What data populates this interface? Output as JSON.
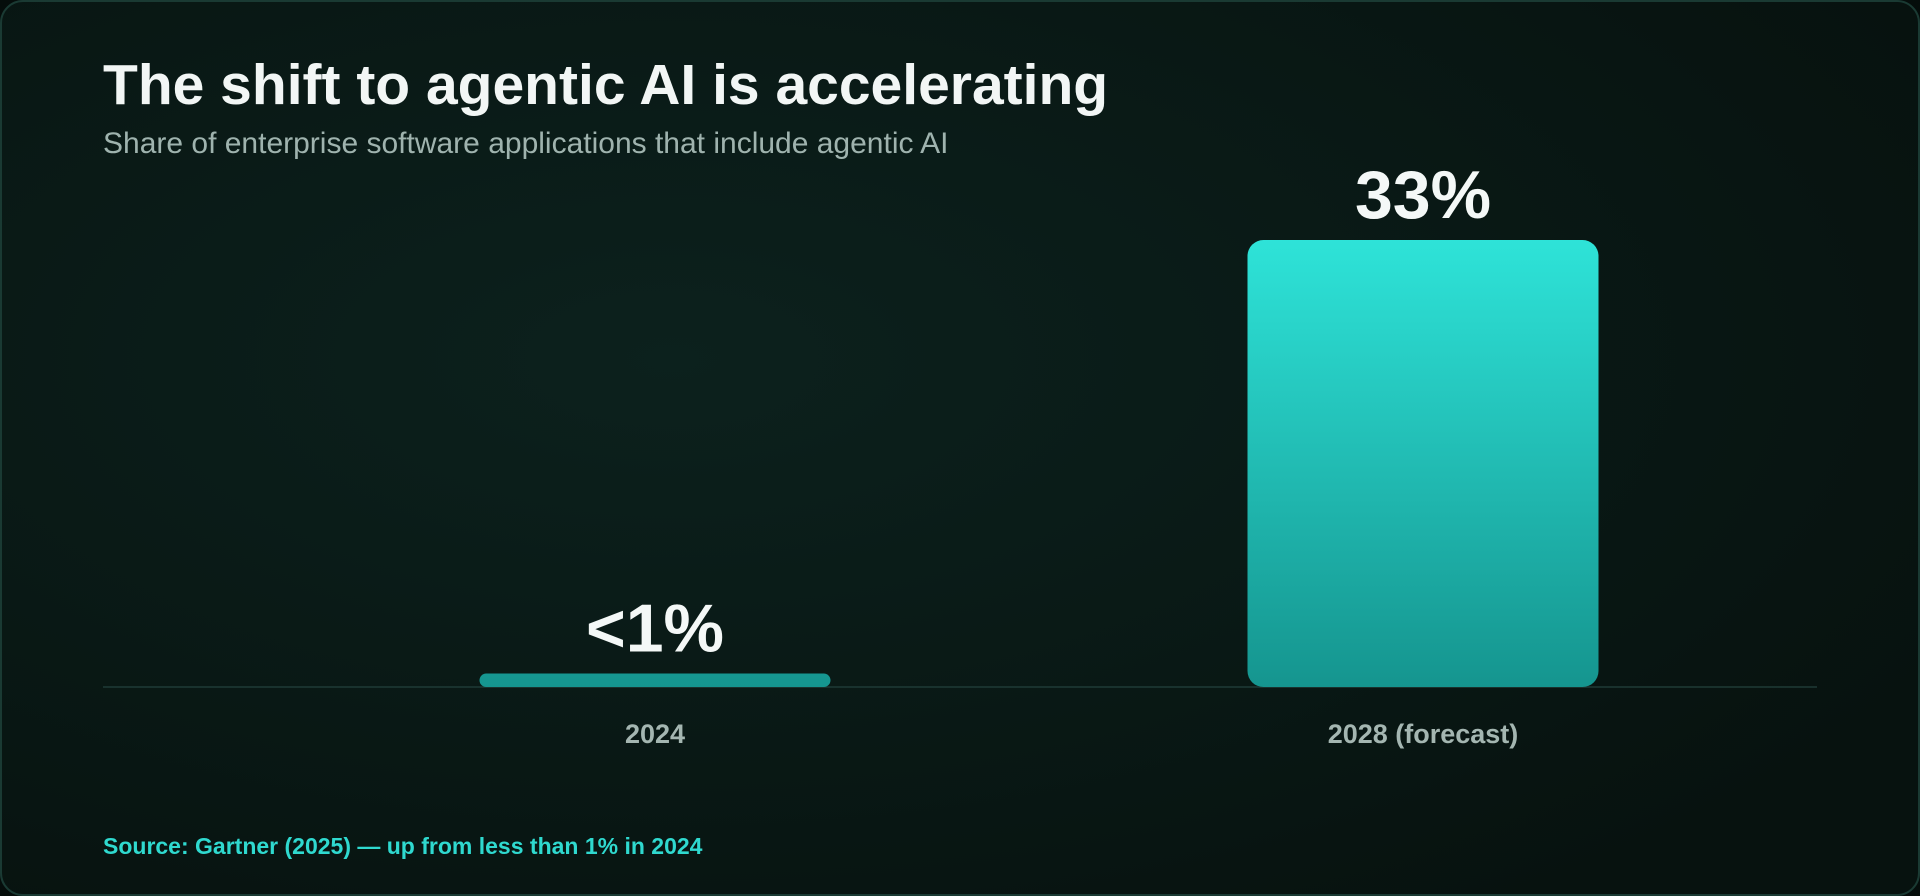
{
  "chart_data": {
    "type": "bar",
    "title": "The shift to agentic AI is accelerating",
    "subtitle": "Share of enterprise software applications that include agentic AI",
    "categories": [
      "2024",
      "2028 (forecast)"
    ],
    "values": [
      1,
      33
    ],
    "value_labels": [
      "<1%",
      "33%"
    ],
    "gradient": [
      "#2ee3d8",
      "#15958f"
    ],
    "source": "Source: Gartner (2025) — up from less than 1% in 2024"
  }
}
